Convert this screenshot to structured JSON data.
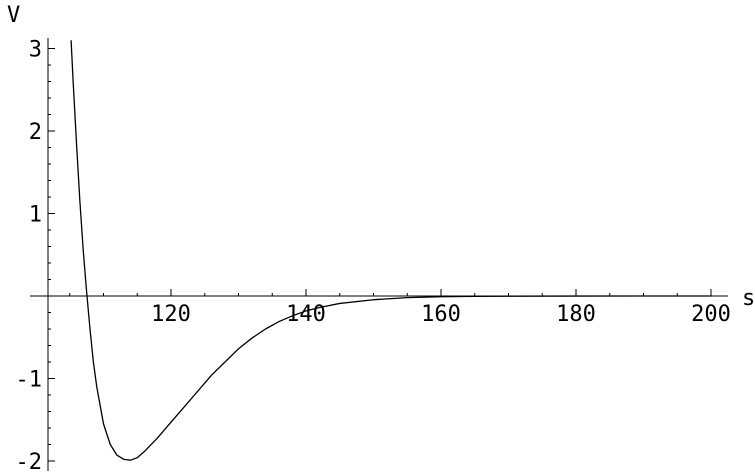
{
  "chart_data": {
    "type": "line",
    "title": "",
    "xlabel": "s",
    "ylabel": "V",
    "xlim": [
      100,
      200
    ],
    "ylim": [
      -2.05,
      3.15
    ],
    "grid": false,
    "legend": "none",
    "line_color": "#000000",
    "x_ticks": [
      {
        "value": 120,
        "label": "120"
      },
      {
        "value": 140,
        "label": "140"
      },
      {
        "value": 160,
        "label": "160"
      },
      {
        "value": 180,
        "label": "180"
      },
      {
        "value": 200,
        "label": "200"
      }
    ],
    "y_ticks": [
      {
        "value": 3,
        "label": "3"
      },
      {
        "value": 2,
        "label": "2"
      },
      {
        "value": 1,
        "label": "1"
      },
      {
        "value": -1,
        "label": "-1"
      },
      {
        "value": -2,
        "label": "-2"
      }
    ],
    "series": [
      {
        "x": [
          105.2,
          105.5,
          106.0,
          106.5,
          107.0,
          107.5,
          108.0,
          108.5,
          109.0,
          110.0,
          111.0,
          112.0,
          113.0,
          114.0,
          115.0,
          116.0,
          118.0,
          120.0,
          122.0,
          124.0,
          126.0,
          128.0,
          130.0,
          132.0,
          134.0,
          136.0,
          138.0,
          140.0,
          142.0,
          145.0,
          150.0,
          155.0,
          160.0,
          165.0,
          170.0,
          180.0,
          190.0,
          200.0
        ],
        "y": [
          3.1,
          2.6,
          1.85,
          1.15,
          0.55,
          0.05,
          -0.4,
          -0.8,
          -1.1,
          -1.55,
          -1.8,
          -1.93,
          -1.98,
          -1.99,
          -1.96,
          -1.89,
          -1.72,
          -1.53,
          -1.34,
          -1.15,
          -0.96,
          -0.8,
          -0.64,
          -0.51,
          -0.4,
          -0.31,
          -0.24,
          -0.18,
          -0.14,
          -0.09,
          -0.045,
          -0.02,
          -0.009,
          -0.004,
          -0.002,
          -0.0005,
          -0.0001,
          0.0
        ]
      }
    ]
  }
}
